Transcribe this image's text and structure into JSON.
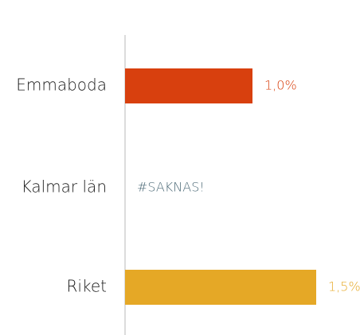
{
  "chart_data": {
    "type": "hbar",
    "categories": [
      "Emmaboda",
      "Kalmar län",
      "Riket"
    ],
    "values": [
      1.0,
      null,
      1.5
    ],
    "value_labels": [
      "1,0%",
      "#SAKNAS!",
      "1,5%"
    ],
    "colors": [
      "#d8400e",
      "#4e6b78",
      "#e5a826"
    ],
    "xlim": [
      0,
      1.8
    ]
  }
}
